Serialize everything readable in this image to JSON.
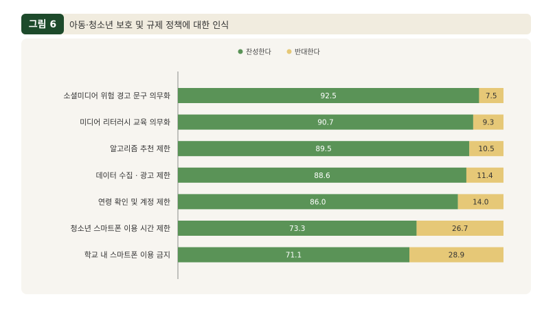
{
  "figure": {
    "label": "그림 6",
    "title": "아동·청소년 보호 및 규제 정책에 대한 인식"
  },
  "chart_data": {
    "type": "bar",
    "orientation": "horizontal",
    "stacked": true,
    "categories": [
      "소셜미디어 위험 경고 문구 의무화",
      "미디어 리터러시 교육 의무화",
      "알고리즘 추천 제한",
      "데이터 수집 · 광고 제한",
      "연령 확인 및 계정 제한",
      "청소년 스마트폰 이용 시간 제한",
      "학교 내 스마트폰 이용 금지"
    ],
    "series": [
      {
        "name": "찬성한다",
        "color": "#5a9357",
        "values": [
          "92.5",
          "90.7",
          "89.5",
          "88.6",
          "86.0",
          "73.3",
          "71.1"
        ]
      },
      {
        "name": "반대한다",
        "color": "#e6c877",
        "values": [
          "7.5",
          "9.3",
          "10.5",
          "11.4",
          "14.0",
          "26.7",
          "28.9"
        ]
      }
    ],
    "xlim": [
      0,
      100
    ],
    "legend_position": "top-center",
    "grid": false
  }
}
